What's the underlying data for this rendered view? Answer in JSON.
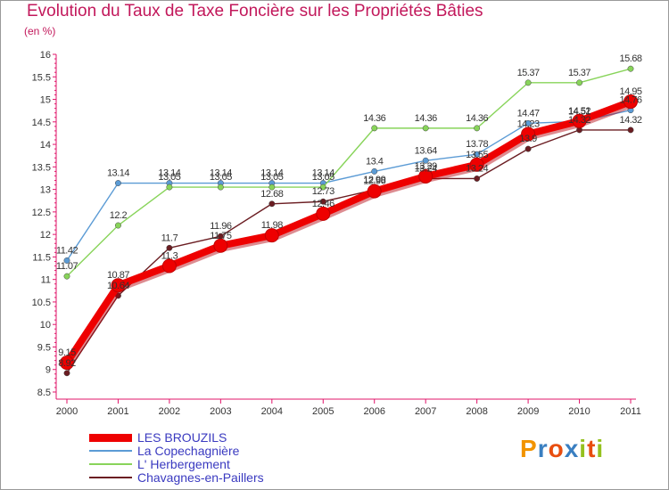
{
  "header": {
    "title": "Evolution du Taux de Taxe Foncière sur les Propriétés Bâties",
    "unit": "(en %)"
  },
  "chart_data": {
    "type": "line",
    "title": "Evolution du Taux de Taxe Foncière sur les Propriétés Bâties",
    "ylabel": "(en %)",
    "xlabel": "",
    "categories": [
      "2000",
      "2001",
      "2002",
      "2003",
      "2004",
      "2005",
      "2006",
      "2007",
      "2008",
      "2009",
      "2010",
      "2011"
    ],
    "ylim": [
      8.5,
      16
    ],
    "yticks": [
      "8.5",
      "9",
      "9.5",
      "10",
      "10.5",
      "11",
      "11.5",
      "12",
      "12.5",
      "13",
      "13.5",
      "14",
      "14.5",
      "15",
      "15.5",
      "16"
    ],
    "grid": false,
    "series": [
      {
        "name": "LES BROUZILS",
        "color": "#ee0000",
        "values": [
          9.15,
          10.87,
          11.3,
          11.75,
          11.98,
          12.46,
          12.96,
          13.29,
          13.55,
          14.23,
          14.52,
          14.95
        ],
        "labels": [
          "9.15",
          "10.87",
          "11.3",
          "11.75",
          "11.98",
          "12.46",
          "12.96",
          "13.29",
          "13.55",
          "14.23",
          "14.52",
          "14.95"
        ]
      },
      {
        "name": "La Copechagnière",
        "color": "#5b9bd5",
        "values": [
          11.42,
          13.14,
          13.14,
          13.14,
          13.14,
          13.14,
          13.4,
          13.64,
          13.78,
          14.47,
          14.51,
          14.76
        ],
        "labels": [
          "11.42",
          "13.14",
          "13.14",
          "13.14",
          "13.14",
          "13.14",
          "13.4",
          "13.64",
          "13.78",
          "14.47",
          "14.51",
          "14.76"
        ]
      },
      {
        "name": "L' Herbergement",
        "color": "#88d45a",
        "values": [
          11.07,
          12.2,
          13.05,
          13.05,
          13.05,
          13.05,
          14.36,
          14.36,
          14.36,
          15.37,
          15.37,
          15.68
        ],
        "labels": [
          "11.07",
          "12.2",
          "13.05",
          "13.05",
          "13.05",
          "13.05",
          "14.36",
          "14.36",
          "14.36",
          "15.37",
          "15.37",
          "15.68"
        ]
      },
      {
        "name": "Chavagnes-en-Paillers",
        "color": "#6b1d22",
        "values": [
          8.92,
          10.64,
          11.7,
          11.96,
          12.68,
          12.73,
          12.99,
          13.24,
          13.24,
          13.9,
          14.32,
          14.32
        ],
        "labels": [
          "8.92",
          "10.64",
          "11.7",
          "11.96",
          "12.68",
          "12.73",
          "12.99",
          "13.24",
          "13.24",
          "13.9",
          "14.32",
          "14.32"
        ]
      }
    ]
  },
  "legend": {
    "items": [
      {
        "label": "LES BROUZILS",
        "color": "#ee0000"
      },
      {
        "label": "La Copechagnière",
        "color": "#5b9bd5"
      },
      {
        "label": "L' Herbergement",
        "color": "#88d45a"
      },
      {
        "label": "Chavagnes-en-Paillers",
        "color": "#6b1d22"
      }
    ]
  },
  "logo": {
    "letters": [
      "P",
      "r",
      "o",
      "x",
      "i",
      "t",
      "i"
    ],
    "colors": [
      "#f29400",
      "#3a7fc1",
      "#e84e0f",
      "#3a7fc1",
      "#95c11f",
      "#e84e0f",
      "#95c11f"
    ]
  }
}
